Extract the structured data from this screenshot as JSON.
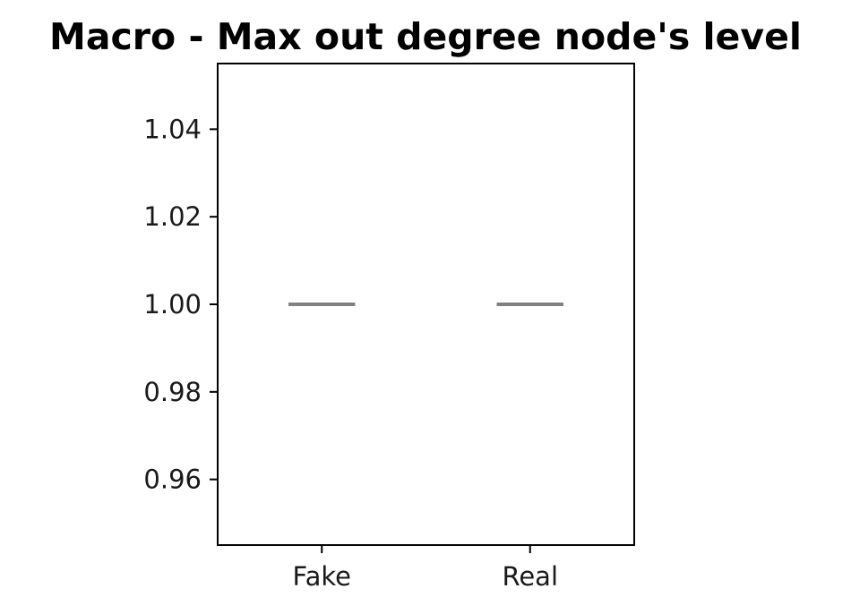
{
  "chart_data": {
    "type": "box",
    "title": "Macro - Max out degree node's level",
    "xlabel": "",
    "ylabel": "",
    "categories": [
      "Fake",
      "Real"
    ],
    "boxes": [
      {
        "category": "Fake",
        "min": 1.0,
        "q1": 1.0,
        "median": 1.0,
        "q3": 1.0,
        "max": 1.0
      },
      {
        "category": "Real",
        "min": 1.0,
        "q1": 1.0,
        "median": 1.0,
        "q3": 1.0,
        "max": 1.0
      }
    ],
    "ylim": [
      0.945,
      1.055
    ],
    "yticks": [
      0.96,
      0.98,
      1.0,
      1.02,
      1.04
    ],
    "ytick_labels": [
      "0.96",
      "0.98",
      "1.00",
      "1.02",
      "1.04"
    ],
    "grid": false,
    "colors": {
      "median": "#808080",
      "frame": "#000000",
      "text": "#1a1a1a"
    }
  }
}
